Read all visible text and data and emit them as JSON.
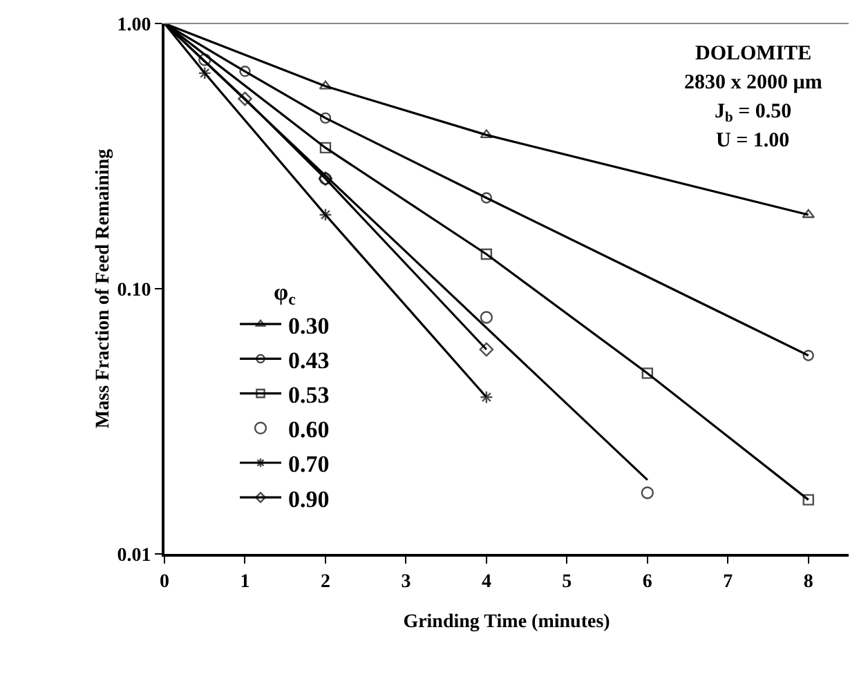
{
  "chart_data": {
    "type": "line",
    "xlabel": "Grinding Time (minutes)",
    "ylabel": "Mass Fraction of Feed Remaining",
    "legend_title": "φ$_{c}$",
    "log": "y",
    "xlim": [
      0,
      8.5
    ],
    "xticks": [
      0,
      1,
      2,
      3,
      4,
      5,
      6,
      7,
      8
    ],
    "ylim": [
      0.01,
      1
    ],
    "yticks": [
      {
        "value": 1,
        "label": "1.00"
      },
      {
        "value": 0.1,
        "label": "0.10"
      },
      {
        "value": 0.01,
        "label": "0.01"
      }
    ],
    "grid": false,
    "legend": "bottom left",
    "annotations": [
      "DOLOMITE",
      "2830 x 2000 µm",
      "J$_{b}$ = 0.50",
      "U = 1.00"
    ],
    "series": [
      {
        "name": "0.30",
        "color": "#000000",
        "marker": "triangle",
        "x": [
          0,
          2,
          4,
          8
        ],
        "values": [
          1,
          0.58,
          0.38,
          0.19
        ]
      },
      {
        "name": "0.43",
        "color": "#000000",
        "marker": "circle",
        "x": [
          0,
          1,
          2,
          4,
          8
        ],
        "values": [
          1,
          0.66,
          0.44,
          0.22,
          0.056
        ]
      },
      {
        "name": "0.53",
        "color": "#000000",
        "marker": "square",
        "x": [
          0,
          2,
          4,
          6,
          8
        ],
        "values": [
          1,
          0.34,
          0.135,
          0.048,
          0.016
        ]
      },
      {
        "name": "0.60",
        "type": "scatter",
        "color": "#000000",
        "marker": "circle",
        "x": [
          0.5,
          2,
          4,
          6
        ],
        "values": [
          0.73,
          0.26,
          0.078,
          0.017
        ]
      },
      {
        "type": "line",
        "color": "#000000",
        "marker": "none",
        "x": [
          0,
          6
        ],
        "values": [
          1,
          0.019
        ]
      },
      {
        "name": "0.70",
        "color": "#000000",
        "marker": "cross",
        "x": [
          0,
          0.5,
          2,
          4
        ],
        "values": [
          1,
          0.65,
          0.19,
          0.039
        ]
      },
      {
        "name": "0.90",
        "color": "#000000",
        "marker": "diamond",
        "x": [
          0,
          1,
          2,
          4
        ],
        "values": [
          1,
          0.52,
          0.26,
          0.059
        ]
      }
    ]
  }
}
